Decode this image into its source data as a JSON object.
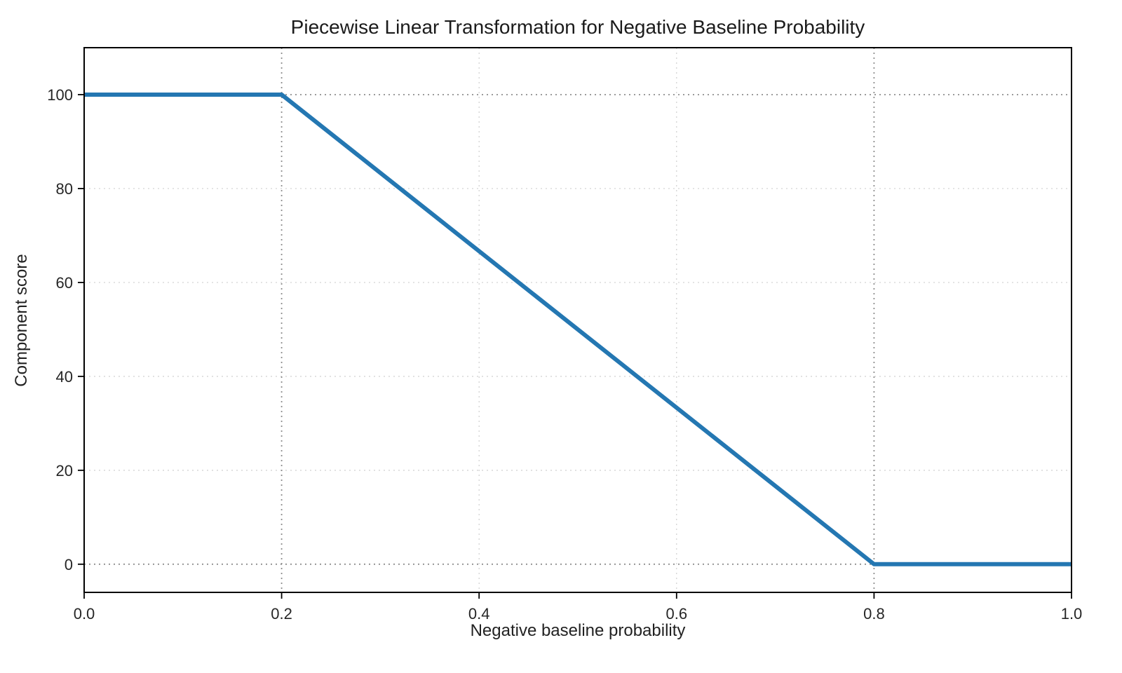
{
  "chart_data": {
    "type": "line",
    "title": "Piecewise Linear Transformation for Negative Baseline Probability",
    "xlabel": "Negative baseline probability",
    "ylabel": "Component score",
    "x": [
      0.0,
      0.2,
      0.8,
      1.0
    ],
    "y": [
      100,
      100,
      0,
      0
    ],
    "xlim": [
      0.0,
      1.0
    ],
    "ylim": [
      -6,
      110
    ],
    "xticks": [
      0.0,
      0.2,
      0.4,
      0.6,
      0.8,
      1.0
    ],
    "yticks": [
      0,
      20,
      40,
      60,
      80,
      100
    ],
    "x_tick_labels": [
      "0.0",
      "0.2",
      "0.4",
      "0.6",
      "0.8",
      "1.0"
    ],
    "y_tick_labels": [
      "0",
      "20",
      "40",
      "60",
      "80",
      "100"
    ],
    "reference_lines": {
      "x": [
        0.2,
        0.8
      ],
      "y": [
        0,
        100
      ]
    },
    "line_color": "#2477b2",
    "line_width": 6,
    "grid": true,
    "grid_style": "dotted",
    "grid_color": "#cfcfcf",
    "ref_line_color": "#8f8f8f",
    "spine_color": "#000000",
    "legend": "none"
  }
}
